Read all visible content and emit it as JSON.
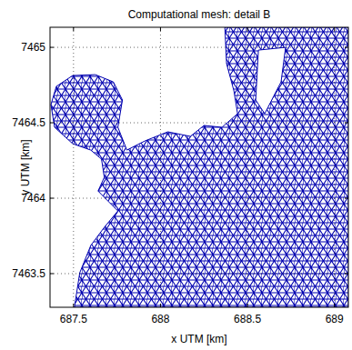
{
  "chart_data": {
    "type": "mesh",
    "title": "Computational mesh: detail B",
    "x_label": "x UTM [km]",
    "y_label": "y UTM [km]",
    "xlim": [
      687.365,
      689.08
    ],
    "ylim": [
      7463.277,
      7465.133
    ],
    "xticks": [
      687.5,
      688,
      688.5,
      689
    ],
    "yticks": [
      7463.5,
      7464,
      7464.5,
      7465
    ],
    "grid": true,
    "color": "#0000b0",
    "boundary": {
      "x": [
        689.08,
        688.37,
        688.38,
        688.422,
        688.443,
        688.354,
        688.25,
        688.172,
        688.042,
        687.911,
        687.807,
        687.755,
        687.781,
        687.729,
        687.625,
        687.495,
        687.401,
        687.37,
        687.391,
        687.495,
        687.599,
        687.661,
        687.677,
        687.641,
        687.703,
        687.755,
        687.677,
        687.599,
        687.536,
        687.505,
        689.08
      ],
      "y": [
        7465.133,
        7465.133,
        7464.892,
        7464.711,
        7464.56,
        7464.47,
        7464.482,
        7464.41,
        7464.44,
        7464.38,
        7464.319,
        7464.47,
        7464.651,
        7464.771,
        7464.819,
        7464.813,
        7464.741,
        7464.62,
        7464.47,
        7464.361,
        7464.319,
        7464.259,
        7464.139,
        7464.048,
        7463.976,
        7463.916,
        7463.807,
        7463.687,
        7463.506,
        7463.277,
        7463.277
      ]
    },
    "islands": [
      {
        "x": [
          688.563,
          688.719,
          688.693,
          688.599,
          688.547
        ],
        "y": [
          7464.982,
          7465.0,
          7464.771,
          7464.56,
          7464.651
        ]
      }
    ]
  }
}
